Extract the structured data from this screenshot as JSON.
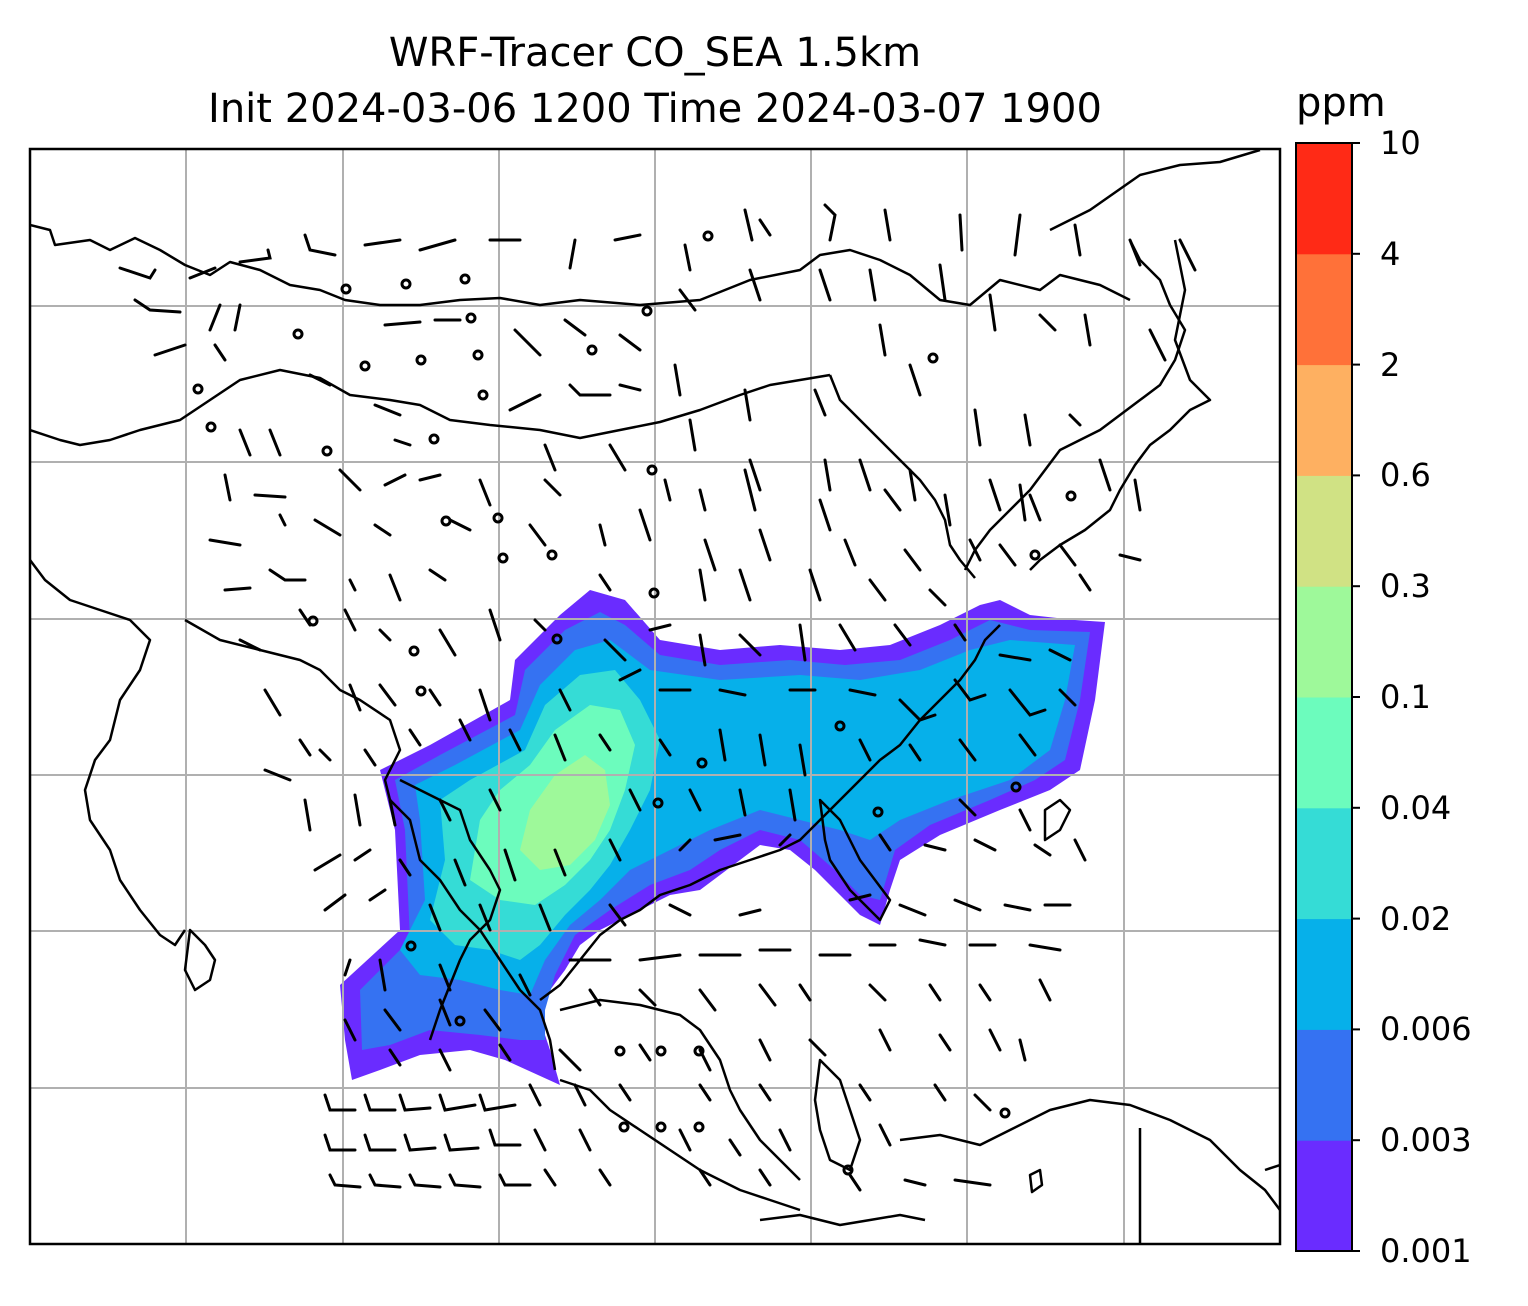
{
  "title_line1": "WRF-Tracer CO_SEA 1.5km",
  "title_line2": "Init 2024-03-06 1200 Time 2024-03-07 1900",
  "colorbar": {
    "unit": "ppm",
    "levels": [
      "0.001",
      "0.003",
      "0.006",
      "0.02",
      "0.04",
      "0.1",
      "0.3",
      "0.6",
      "2",
      "4",
      "10"
    ],
    "colors": [
      "#6a2cff",
      "#3572f2",
      "#06b0ea",
      "#35dcd6",
      "#6cfcbd",
      "#9ef99a",
      "#d0e284",
      "#feb061",
      "#ff7139",
      "#ff2a16"
    ]
  },
  "map": {
    "gridlines": true,
    "field": "CO tracer concentration",
    "overlay": "wind barbs"
  }
}
